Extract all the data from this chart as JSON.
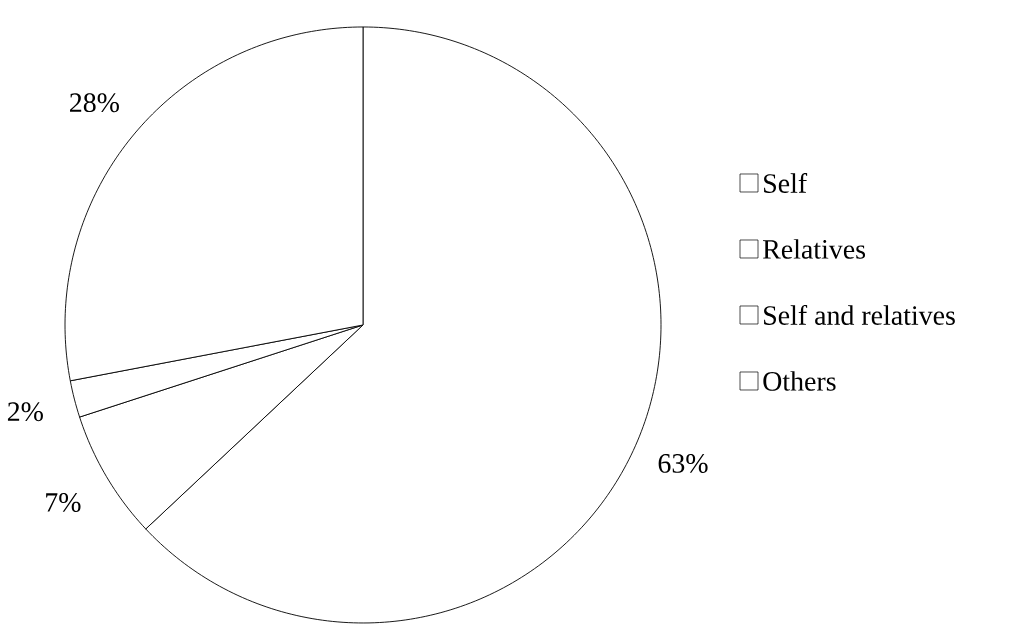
{
  "chart_data": {
    "type": "pie",
    "categories": [
      "Self",
      "Relatives",
      "Self and relatives",
      "Others"
    ],
    "values": [
      63,
      7,
      2,
      28
    ],
    "value_labels": [
      "63%",
      "7%",
      "2%",
      "28%"
    ],
    "colors": [
      "#ffffff",
      "#ffffff",
      "#ffffff",
      "#ffffff"
    ],
    "legend": "right"
  }
}
